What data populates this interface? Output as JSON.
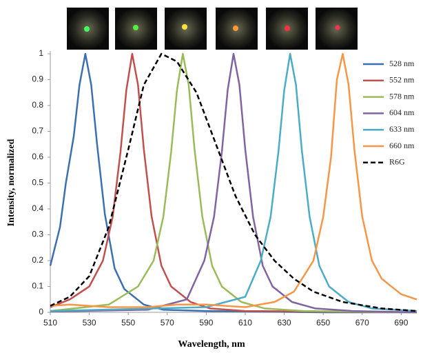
{
  "chart_data": {
    "type": "line",
    "xlabel": "Wavelength, nm",
    "ylabel": "Intensity, normalized",
    "xlim": [
      510,
      698
    ],
    "ylim": [
      0,
      1
    ],
    "xticks": [
      510,
      530,
      550,
      570,
      590,
      610,
      630,
      650,
      670,
      690
    ],
    "yticks": [
      0,
      0.1,
      0.2,
      0.3,
      0.4,
      0.5,
      0.6,
      0.7,
      0.8,
      0.9,
      1
    ],
    "grid": false,
    "legend": "top-right",
    "series": [
      {
        "name": "528 nm",
        "color": "#3a6fb0",
        "dashed": false,
        "x": [
          510,
          515,
          518,
          522,
          525,
          528,
          531,
          534,
          538,
          543,
          548,
          558,
          568,
          590,
          650,
          698
        ],
        "values": [
          0.18,
          0.33,
          0.5,
          0.68,
          0.88,
          1,
          0.88,
          0.65,
          0.38,
          0.17,
          0.09,
          0.03,
          0.01,
          0.005,
          0,
          0
        ]
      },
      {
        "name": "552 nm",
        "color": "#c0504d",
        "dashed": false,
        "x": [
          510,
          520,
          530,
          537,
          542,
          546,
          549,
          552,
          555,
          558,
          562,
          567,
          572,
          582,
          592,
          610,
          698
        ],
        "values": [
          0.02,
          0.05,
          0.1,
          0.2,
          0.37,
          0.62,
          0.86,
          1,
          0.88,
          0.63,
          0.37,
          0.18,
          0.1,
          0.04,
          0.015,
          0.005,
          0
        ]
      },
      {
        "name": "578 nm",
        "color": "#9bbb59",
        "dashed": false,
        "x": [
          510,
          540,
          555,
          563,
          568,
          572,
          575,
          578,
          581,
          584,
          588,
          593,
          598,
          608,
          620,
          640,
          698
        ],
        "values": [
          0.005,
          0.03,
          0.1,
          0.2,
          0.37,
          0.62,
          0.86,
          1,
          0.88,
          0.63,
          0.37,
          0.18,
          0.1,
          0.04,
          0.015,
          0.005,
          0
        ]
      },
      {
        "name": "604 nm",
        "color": "#8064a2",
        "dashed": false,
        "x": [
          510,
          560,
          580,
          589,
          594,
          598,
          601,
          604,
          607,
          610,
          614,
          619,
          624,
          634,
          646,
          665,
          698
        ],
        "values": [
          0.003,
          0.01,
          0.05,
          0.2,
          0.37,
          0.62,
          0.86,
          1,
          0.88,
          0.63,
          0.37,
          0.18,
          0.1,
          0.04,
          0.015,
          0.005,
          0
        ]
      },
      {
        "name": "633 nm",
        "color": "#4bacc6",
        "dashed": false,
        "x": [
          510,
          590,
          610,
          618,
          623,
          627,
          630,
          633,
          636,
          639,
          643,
          648,
          653,
          663,
          675,
          698
        ],
        "values": [
          0.005,
          0.02,
          0.06,
          0.2,
          0.37,
          0.62,
          0.86,
          1,
          0.88,
          0.63,
          0.37,
          0.18,
          0.1,
          0.04,
          0.015,
          0.005
        ]
      },
      {
        "name": "660 nm",
        "color": "#f79646",
        "dashed": false,
        "x": [
          510,
          520,
          540,
          560,
          575,
          590,
          610,
          625,
          635,
          645,
          650,
          654,
          657,
          660,
          663,
          666,
          670,
          675,
          680,
          690,
          698
        ],
        "values": [
          0.025,
          0.03,
          0.02,
          0.02,
          0.03,
          0.03,
          0.02,
          0.04,
          0.08,
          0.2,
          0.37,
          0.6,
          0.9,
          1,
          0.88,
          0.63,
          0.37,
          0.2,
          0.13,
          0.07,
          0.05
        ]
      },
      {
        "name": "R6G",
        "color": "#000000",
        "dashed": true,
        "x": [
          510,
          520,
          530,
          540,
          550,
          558,
          567,
          575,
          585,
          595,
          605,
          615,
          625,
          635,
          645,
          660,
          680,
          698
        ],
        "values": [
          0.025,
          0.06,
          0.14,
          0.33,
          0.63,
          0.88,
          1,
          0.97,
          0.85,
          0.65,
          0.45,
          0.3,
          0.2,
          0.13,
          0.08,
          0.04,
          0.015,
          0.005
        ]
      }
    ]
  }
}
